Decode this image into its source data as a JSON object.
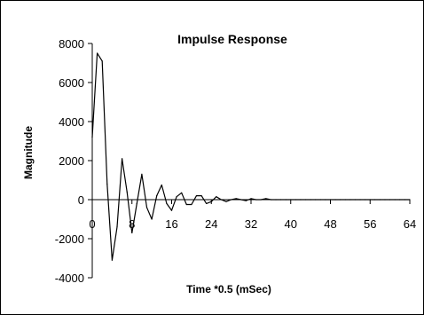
{
  "chart_data": {
    "type": "line",
    "title": "Impulse Response",
    "xlabel": "Time *0.5 (mSec)",
    "ylabel": "Magnitude",
    "xlim": [
      0,
      64
    ],
    "ylim": [
      -4000,
      8000
    ],
    "x_ticks": [
      0,
      8,
      16,
      24,
      32,
      40,
      48,
      56,
      64
    ],
    "x_tick_labels": [
      "0",
      "8",
      "16",
      "24",
      "32",
      "40",
      "48",
      "56",
      "64"
    ],
    "y_ticks": [
      -4000,
      -2000,
      0,
      2000,
      4000,
      6000,
      8000
    ],
    "y_tick_labels": [
      "-4000",
      "-2000",
      "0",
      "2000",
      "4000",
      "6000",
      "8000"
    ],
    "grid": false,
    "legend": "none",
    "series": [
      {
        "color": "#000000",
        "x": [
          0,
          1,
          2,
          3,
          4,
          5,
          6,
          7,
          8,
          9,
          10,
          11,
          12,
          13,
          14,
          15,
          16,
          17,
          18,
          19,
          20,
          21,
          22,
          23,
          24,
          25,
          26,
          27,
          28,
          29,
          30,
          31,
          32,
          33,
          34,
          35,
          36,
          37,
          38,
          39,
          40,
          41,
          42,
          43,
          44,
          45,
          46,
          47,
          48,
          49,
          50,
          51,
          52,
          53,
          54,
          55,
          56,
          57,
          58,
          59,
          60,
          61,
          62,
          63,
          64
        ],
        "values": [
          3200,
          7500,
          7100,
          800,
          -3100,
          -1400,
          2100,
          400,
          -1700,
          -200,
          1300,
          -400,
          -1000,
          200,
          750,
          -200,
          -550,
          150,
          350,
          -250,
          -250,
          200,
          200,
          -200,
          -100,
          150,
          0,
          -100,
          0,
          50,
          0,
          -50,
          50,
          0,
          0,
          50,
          0,
          0,
          0,
          0,
          0,
          0,
          0,
          0,
          0,
          0,
          0,
          0,
          0,
          0,
          0,
          0,
          0,
          0,
          0,
          0,
          0,
          0,
          0,
          0,
          0,
          0,
          0,
          0,
          0
        ]
      }
    ]
  }
}
